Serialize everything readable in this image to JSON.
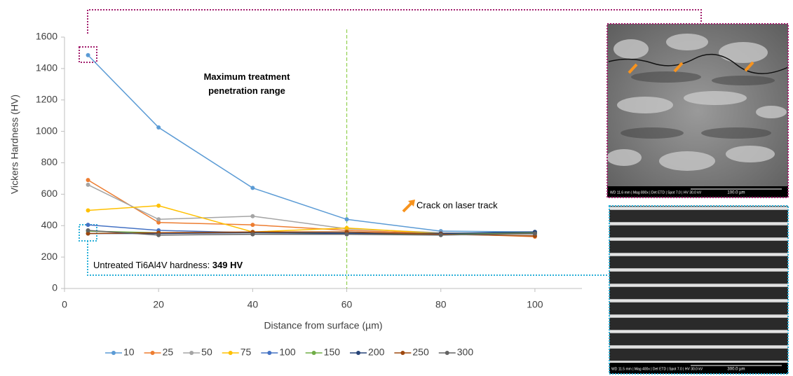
{
  "chart_data": {
    "type": "line",
    "x": [
      5,
      20,
      40,
      60,
      80,
      100
    ],
    "series": [
      {
        "name": "10",
        "color": "#5b9bd5",
        "values": [
          1485,
          1025,
          640,
          440,
          365,
          360
        ]
      },
      {
        "name": "25",
        "color": "#ed7d31",
        "values": [
          690,
          420,
          405,
          370,
          350,
          330
        ]
      },
      {
        "name": "50",
        "color": "#a5a5a5",
        "values": [
          660,
          440,
          460,
          380,
          355,
          345
        ]
      },
      {
        "name": "75",
        "color": "#ffc000",
        "values": [
          497,
          527,
          360,
          385,
          350,
          355
        ]
      },
      {
        "name": "100",
        "color": "#4472c4",
        "values": [
          405,
          370,
          355,
          355,
          350,
          350
        ]
      },
      {
        "name": "150",
        "color": "#70ad47",
        "values": [
          365,
          355,
          355,
          350,
          345,
          355
        ]
      },
      {
        "name": "200",
        "color": "#264478",
        "values": [
          350,
          350,
          355,
          350,
          350,
          360
        ]
      },
      {
        "name": "250",
        "color": "#9e480e",
        "values": [
          350,
          355,
          360,
          360,
          345,
          335
        ]
      },
      {
        "name": "300",
        "color": "#636363",
        "values": [
          370,
          340,
          345,
          345,
          340,
          350
        ]
      }
    ],
    "xlim": [
      0,
      110
    ],
    "ylim": [
      0,
      1600
    ],
    "xticks": [
      0,
      20,
      40,
      60,
      80,
      100
    ],
    "yticks": [
      0,
      200,
      400,
      600,
      800,
      1000,
      1200,
      1400,
      1600
    ],
    "x_label": "Distance from surface (µm)",
    "y_label": "Vickers Hardness (HV)",
    "legend": "bottom",
    "grid": false,
    "reference_line": {
      "x": 60,
      "color": "#92d050"
    },
    "annotations": {
      "penetration": "Maximum treatment penetration range",
      "crack": "Crack on laser track",
      "untreated_text": "Untreated Ti6Al4V hardness:",
      "untreated_value": "349 HV"
    },
    "images": [
      {
        "scale_label": "100.0 µm",
        "info": "WD 11.6 mm | Mag 800x | Det ETD | Spot 7.0 | HV 30.0 kV"
      },
      {
        "scale_label": "300.0 µm",
        "info": "WD 11.5 mm | Mag 400x | Det ETD | Spot 7.0 | HV 30.0 kV"
      }
    ]
  }
}
